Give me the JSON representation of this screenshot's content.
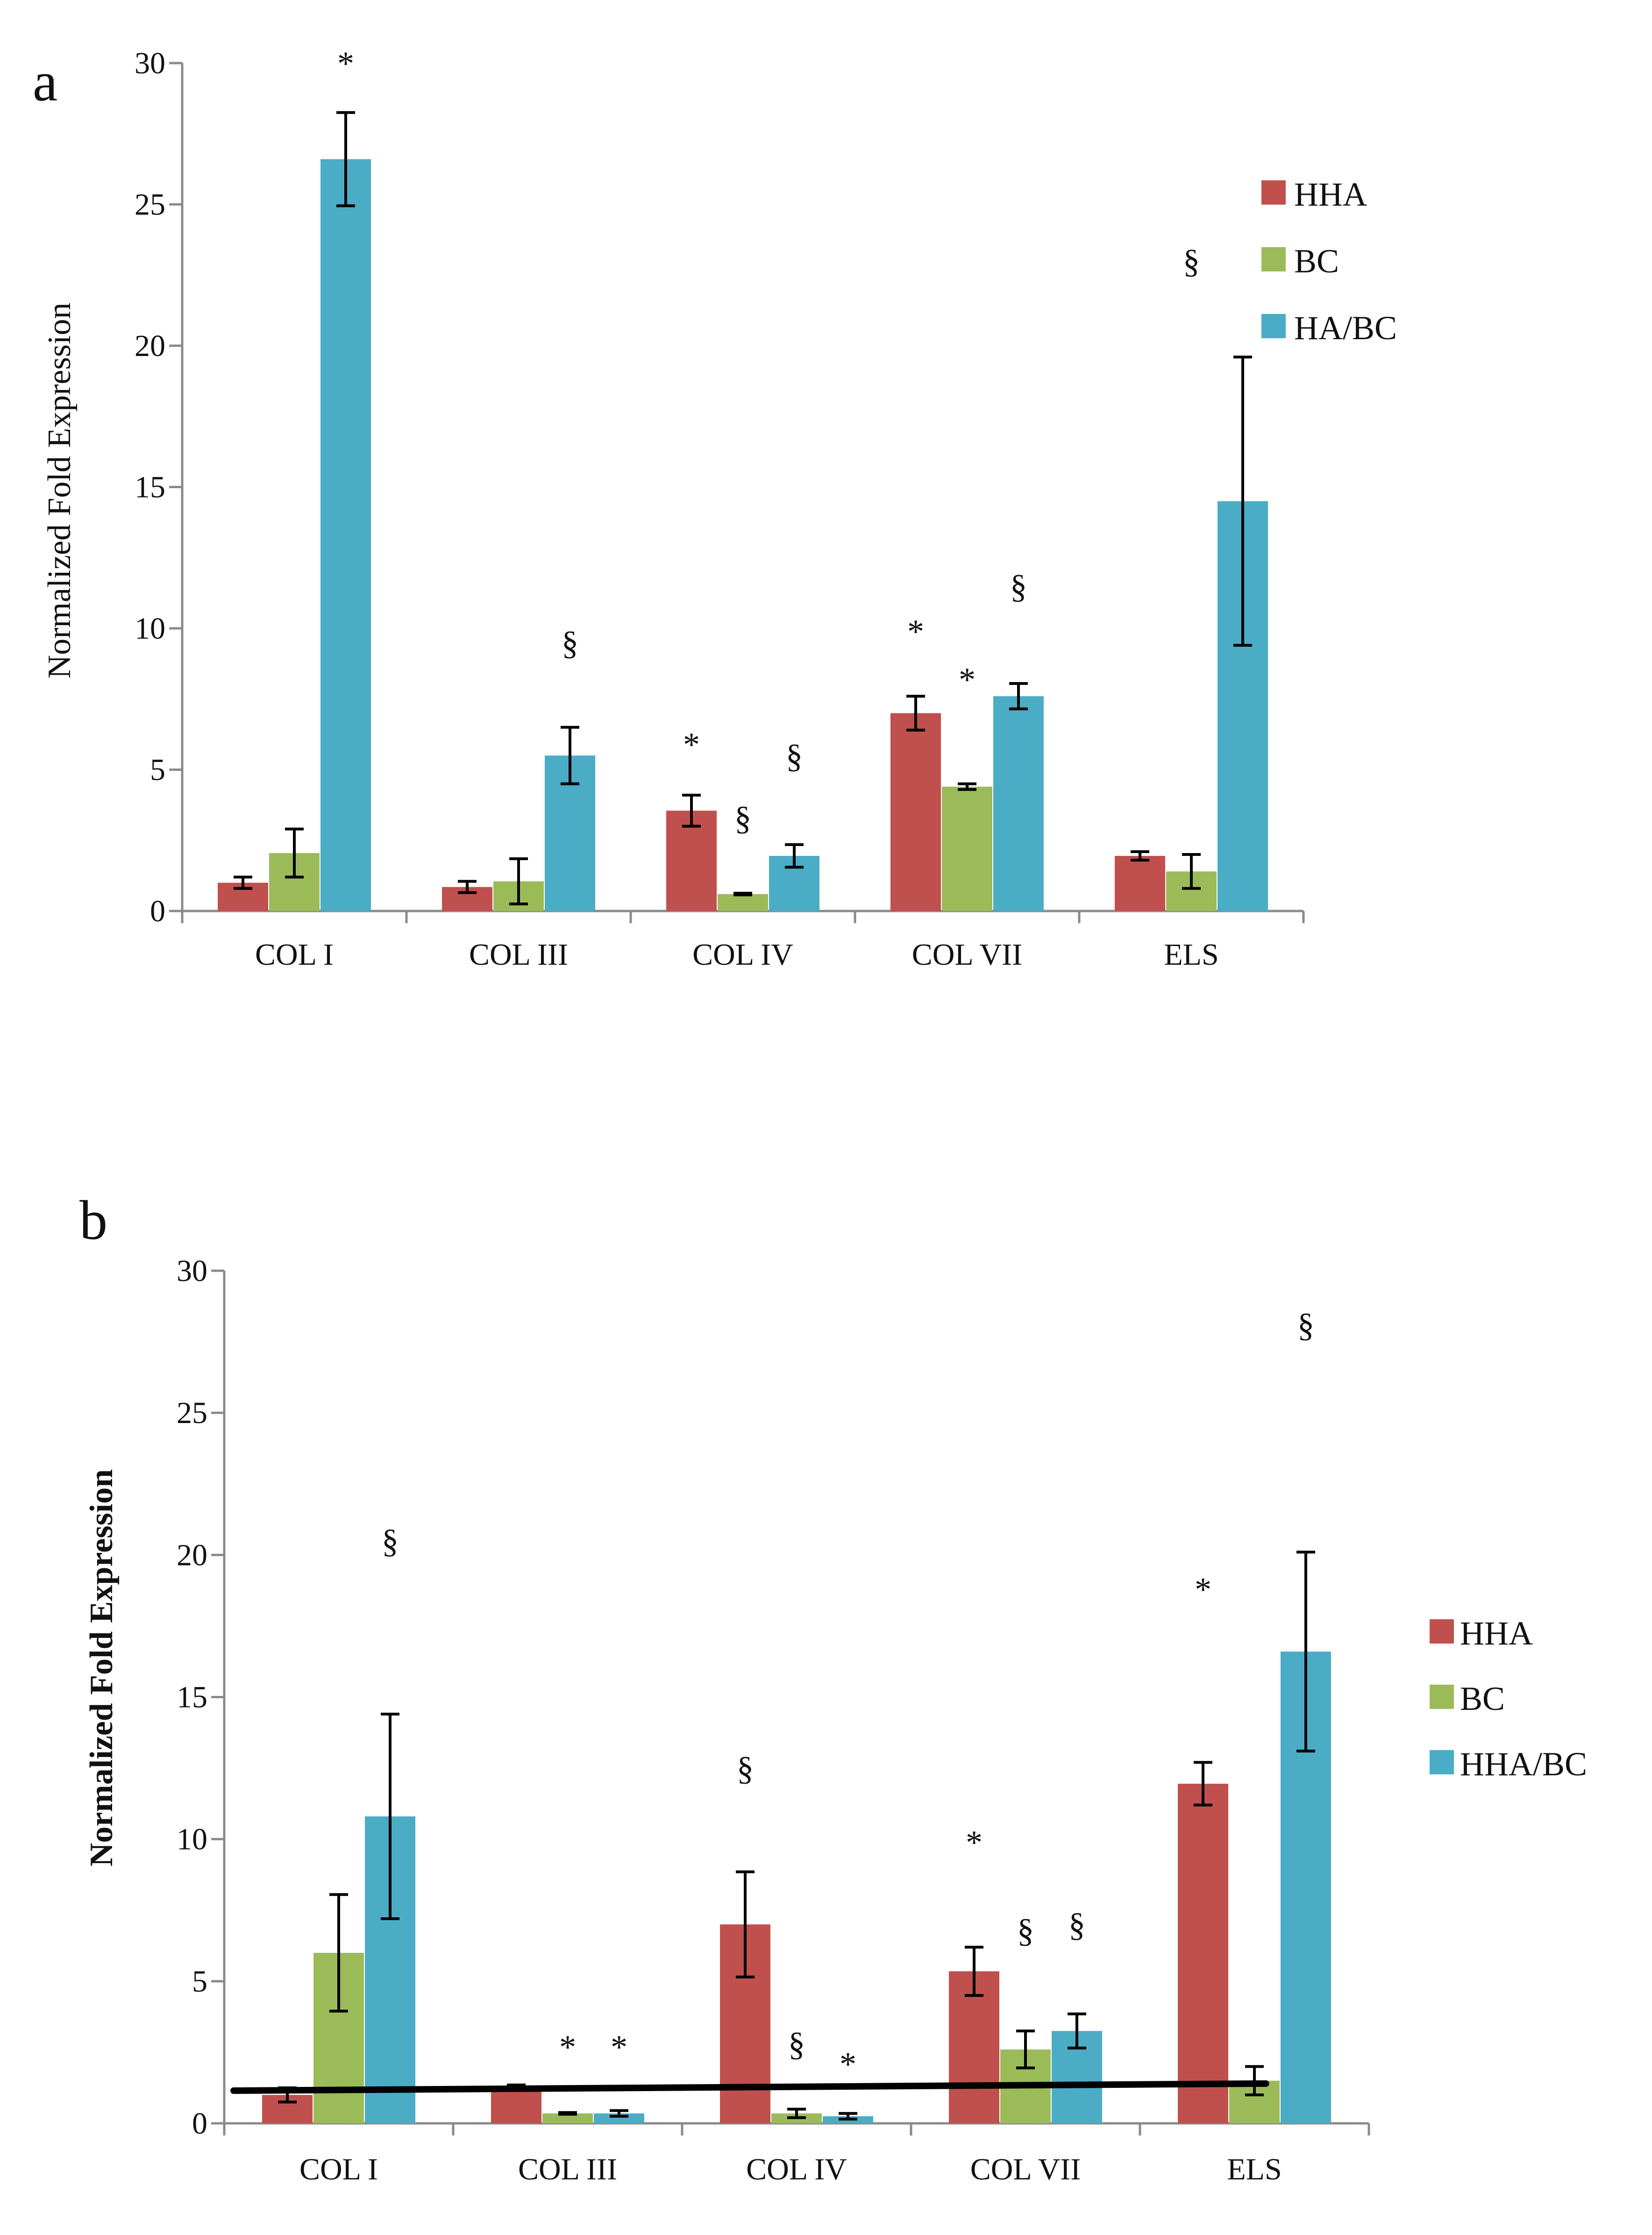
{
  "chart_data": [
    {
      "panel": "a",
      "type": "bar",
      "categories": [
        "COL I",
        "COL III",
        "COL IV",
        "COL VII",
        "ELS"
      ],
      "series": [
        {
          "name": "HHA",
          "color": "#c0504d",
          "values": [
            1.0,
            0.85,
            3.55,
            7.0,
            1.95
          ],
          "errors": [
            0.2,
            0.2,
            0.55,
            0.6,
            0.15
          ]
        },
        {
          "name": "BC",
          "color": "#9bbb59",
          "values": [
            2.05,
            1.05,
            0.6,
            4.4,
            1.4
          ],
          "errors": [
            0.85,
            0.8,
            0.03,
            0.1,
            0.6
          ]
        },
        {
          "name": "HA/BC",
          "color": "#4bacc6",
          "values": [
            26.6,
            5.5,
            1.95,
            7.6,
            14.5
          ],
          "errors": [
            1.65,
            1.0,
            0.4,
            0.45,
            5.1
          ]
        }
      ],
      "annotations": [
        {
          "text": "*",
          "category": 0,
          "series": 2,
          "y": 30.0
        },
        {
          "text": "§",
          "category": 1,
          "series": 2,
          "y": 9.5
        },
        {
          "text": "*",
          "category": 2,
          "series": 0,
          "y": 5.9
        },
        {
          "text": "§",
          "category": 2,
          "series": 1,
          "y": 3.3
        },
        {
          "text": "§",
          "category": 2,
          "series": 2,
          "y": 5.5
        },
        {
          "text": "*",
          "category": 3,
          "series": 0,
          "y": 9.9
        },
        {
          "text": "*",
          "category": 3,
          "series": 1,
          "y": 8.2
        },
        {
          "text": "§",
          "category": 3,
          "series": 2,
          "y": 11.5
        },
        {
          "text": "§",
          "category": 4,
          "series": 1,
          "y": 23.0
        }
      ],
      "xlabel": "",
      "ylabel": "Normalized Fold Expression",
      "ylim": [
        0,
        30
      ],
      "yticks": [
        "0",
        "5",
        "10",
        "15",
        "20",
        "25",
        "30"
      ],
      "legend_position": "top-right"
    },
    {
      "panel": "b",
      "type": "bar",
      "categories": [
        "COL I",
        "COL III",
        "COL IV",
        "COL VII",
        "ELS"
      ],
      "series": [
        {
          "name": "HHA",
          "color": "#c0504d",
          "values": [
            1.0,
            1.3,
            7.0,
            5.35,
            11.95
          ],
          "errors": [
            0.25,
            0.05,
            1.85,
            0.85,
            0.75
          ]
        },
        {
          "name": "BC",
          "color": "#9bbb59",
          "values": [
            6.0,
            0.35,
            0.35,
            2.6,
            1.5
          ],
          "errors": [
            2.05,
            0.03,
            0.15,
            0.65,
            0.5
          ]
        },
        {
          "name": "HHA/BC",
          "color": "#4bacc6",
          "values": [
            10.8,
            0.35,
            0.25,
            3.25,
            16.6
          ],
          "errors": [
            3.6,
            0.1,
            0.1,
            0.6,
            3.5
          ]
        }
      ],
      "reference_line": {
        "from": 1.15,
        "to": 1.4
      },
      "annotations": [
        {
          "text": "§",
          "category": 0,
          "series": 2,
          "y": 20.5
        },
        {
          "text": "*",
          "category": 1,
          "series": 1,
          "y": 2.7
        },
        {
          "text": "*",
          "category": 1,
          "series": 2,
          "y": 2.7
        },
        {
          "text": "§",
          "category": 2,
          "series": 0,
          "y": 12.5
        },
        {
          "text": "§",
          "category": 2,
          "series": 1,
          "y": 2.8
        },
        {
          "text": "*",
          "category": 2,
          "series": 2,
          "y": 2.1
        },
        {
          "text": "*",
          "category": 3,
          "series": 0,
          "y": 9.9
        },
        {
          "text": "§",
          "category": 3,
          "series": 1,
          "y": 6.8
        },
        {
          "text": "§",
          "category": 3,
          "series": 2,
          "y": 7.0
        },
        {
          "text": "*",
          "category": 4,
          "series": 0,
          "y": 18.8
        },
        {
          "text": "§",
          "category": 4,
          "series": 2,
          "y": 28.1
        }
      ],
      "xlabel": "",
      "ylabel": "Normalized  Fold Expression",
      "ylim": [
        0,
        30
      ],
      "yticks": [
        "0",
        "5",
        "10",
        "15",
        "20",
        "25",
        "30"
      ],
      "legend_position": "right"
    }
  ],
  "labels": {
    "panel_a": "a",
    "panel_b": "b"
  }
}
